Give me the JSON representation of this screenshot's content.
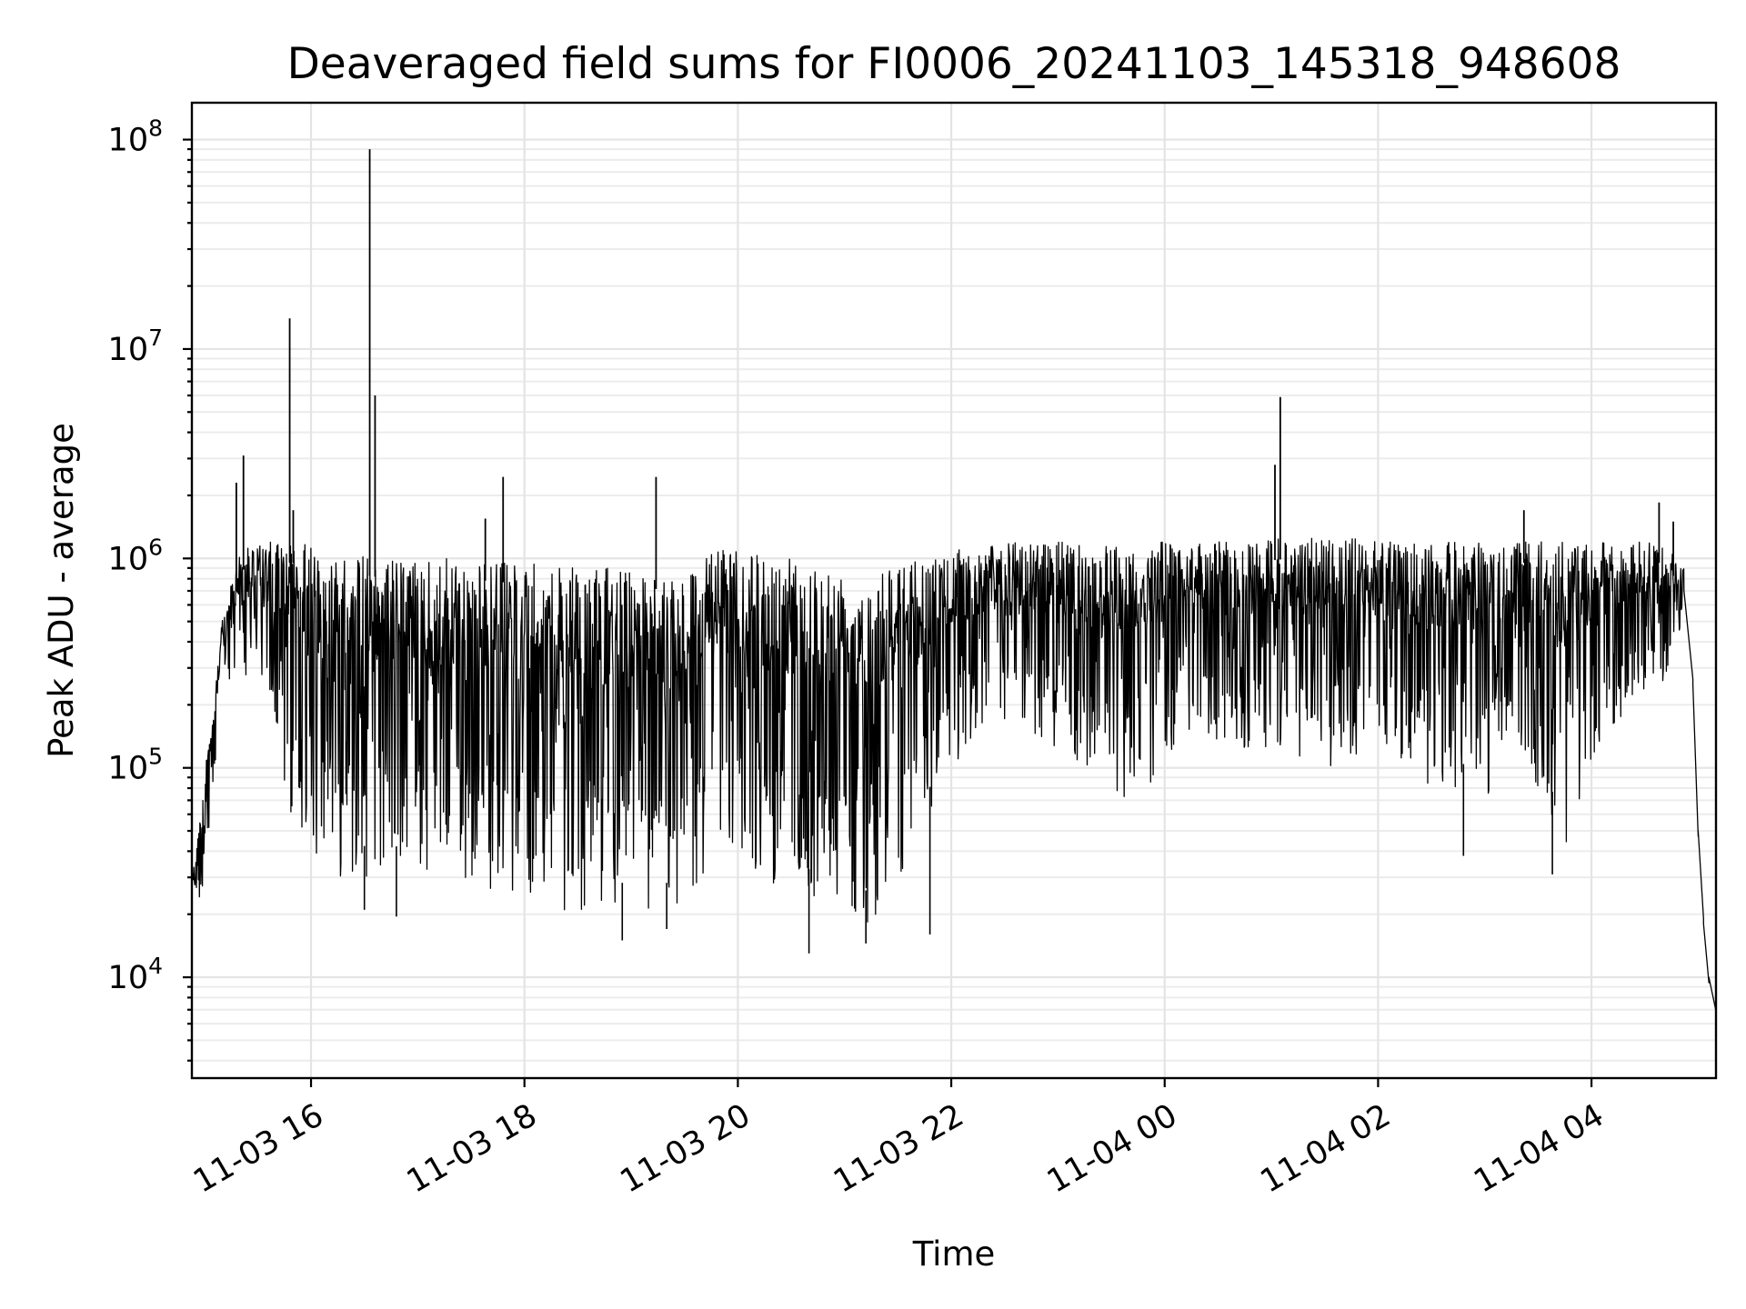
{
  "chart_data": {
    "type": "line",
    "title": "Deaveraged field sums for FI0006_20241103_145318_948608",
    "xlabel": "Time",
    "ylabel": "Peak ADU - average",
    "yscale": "log",
    "ylim": [
      3300,
      150000000
    ],
    "xlim": [
      "2024-11-03 14:53",
      "2024-11-04 05:10"
    ],
    "grid": true,
    "line_color": "#000000",
    "x_ticks": [
      {
        "t": "2024-11-03 16:00",
        "label": "11-03 16"
      },
      {
        "t": "2024-11-03 18:00",
        "label": "11-03 18"
      },
      {
        "t": "2024-11-03 20:00",
        "label": "11-03 20"
      },
      {
        "t": "2024-11-03 22:00",
        "label": "11-03 22"
      },
      {
        "t": "2024-11-04 00:00",
        "label": "11-04 00"
      },
      {
        "t": "2024-11-04 02:00",
        "label": "11-04 02"
      },
      {
        "t": "2024-11-04 04:00",
        "label": "11-04 04"
      }
    ],
    "y_ticks": [
      {
        "value": 10000,
        "base": "10",
        "exp": "4"
      },
      {
        "value": 100000,
        "base": "10",
        "exp": "5"
      },
      {
        "value": 1000000,
        "base": "10",
        "exp": "6"
      },
      {
        "value": 10000000,
        "base": "10",
        "exp": "7"
      },
      {
        "value": 100000000,
        "base": "10",
        "exp": "8"
      }
    ],
    "series": [
      {
        "envelope": [
          {
            "t": "2024-11-03 14:53",
            "lo": 20000,
            "hi": 30000
          },
          {
            "t": "2024-11-03 15:00",
            "lo": 25000,
            "hi": 90000
          },
          {
            "t": "2024-11-03 15:10",
            "lo": 200000,
            "hi": 500000
          },
          {
            "t": "2024-11-03 15:20",
            "lo": 300000,
            "hi": 1100000
          },
          {
            "t": "2024-11-03 15:35",
            "lo": 200000,
            "hi": 1200000
          },
          {
            "t": "2024-11-03 15:50",
            "lo": 50000,
            "hi": 1200000
          },
          {
            "t": "2024-11-03 16:15",
            "lo": 30000,
            "hi": 1100000
          },
          {
            "t": "2024-11-03 16:45",
            "lo": 30000,
            "hi": 1000000
          },
          {
            "t": "2024-11-03 17:30",
            "lo": 28000,
            "hi": 1000000
          },
          {
            "t": "2024-11-03 18:30",
            "lo": 20000,
            "hi": 900000
          },
          {
            "t": "2024-11-03 19:30",
            "lo": 20000,
            "hi": 900000
          },
          {
            "t": "2024-11-03 19:50",
            "lo": 40000,
            "hi": 1100000
          },
          {
            "t": "2024-11-03 20:30",
            "lo": 25000,
            "hi": 1000000
          },
          {
            "t": "2024-11-03 21:15",
            "lo": 18000,
            "hi": 900000
          },
          {
            "t": "2024-11-03 21:45",
            "lo": 50000,
            "hi": 1000000
          },
          {
            "t": "2024-11-03 22:00",
            "lo": 100000,
            "hi": 1100000
          },
          {
            "t": "2024-11-03 22:30",
            "lo": 150000,
            "hi": 1200000
          },
          {
            "t": "2024-11-03 23:00",
            "lo": 120000,
            "hi": 1200000
          },
          {
            "t": "2024-11-03 23:30",
            "lo": 80000,
            "hi": 1200000
          },
          {
            "t": "2024-11-03 23:45",
            "lo": 60000,
            "hi": 1200000
          },
          {
            "t": "2024-11-04 00:10",
            "lo": 150000,
            "hi": 1200000
          },
          {
            "t": "2024-11-04 00:45",
            "lo": 120000,
            "hi": 1200000
          },
          {
            "t": "2024-11-04 01:30",
            "lo": 100000,
            "hi": 1300000
          },
          {
            "t": "2024-11-04 02:00",
            "lo": 120000,
            "hi": 1200000
          },
          {
            "t": "2024-11-04 02:30",
            "lo": 80000,
            "hi": 1200000
          },
          {
            "t": "2024-11-04 03:00",
            "lo": 70000,
            "hi": 1200000
          },
          {
            "t": "2024-11-04 03:20",
            "lo": 120000,
            "hi": 1200000
          },
          {
            "t": "2024-11-04 03:45",
            "lo": 40000,
            "hi": 1200000
          },
          {
            "t": "2024-11-04 04:10",
            "lo": 150000,
            "hi": 1200000
          },
          {
            "t": "2024-11-04 04:40",
            "lo": 250000,
            "hi": 1200000
          },
          {
            "t": "2024-11-04 04:52",
            "lo": 500000,
            "hi": 900000
          }
        ],
        "tail": [
          {
            "t": "2024-11-04 04:52",
            "y": 700000
          },
          {
            "t": "2024-11-04 04:57",
            "y": 250000
          },
          {
            "t": "2024-11-04 05:00",
            "y": 50000
          },
          {
            "t": "2024-11-04 05:03",
            "y": 18000
          },
          {
            "t": "2024-11-04 05:06",
            "y": 10000
          },
          {
            "t": "2024-11-04 05:10",
            "y": 6500
          }
        ],
        "spikes": [
          {
            "t": "2024-11-03 15:18",
            "y": 2300000
          },
          {
            "t": "2024-11-03 15:22",
            "y": 3100000
          },
          {
            "t": "2024-11-03 15:48",
            "y": 14000000
          },
          {
            "t": "2024-11-03 15:50",
            "y": 1700000
          },
          {
            "t": "2024-11-03 16:33",
            "y": 90000000
          },
          {
            "t": "2024-11-03 16:36",
            "y": 6000000
          },
          {
            "t": "2024-11-03 17:38",
            "y": 1550000
          },
          {
            "t": "2024-11-03 17:48",
            "y": 2450000
          },
          {
            "t": "2024-11-03 19:14",
            "y": 2450000
          },
          {
            "t": "2024-11-04 01:02",
            "y": 2800000
          },
          {
            "t": "2024-11-04 01:05",
            "y": 5900000
          },
          {
            "t": "2024-11-04 03:22",
            "y": 1700000
          },
          {
            "t": "2024-11-04 04:38",
            "y": 1850000
          },
          {
            "t": "2024-11-04 04:46",
            "y": 1500000
          }
        ],
        "dips": [
          {
            "t": "2024-11-03 16:30",
            "y": 21000
          },
          {
            "t": "2024-11-03 16:48",
            "y": 19500
          },
          {
            "t": "2024-11-03 18:55",
            "y": 15000
          },
          {
            "t": "2024-11-03 19:20",
            "y": 17000
          },
          {
            "t": "2024-11-03 20:40",
            "y": 13000
          },
          {
            "t": "2024-11-03 21:12",
            "y": 14500
          },
          {
            "t": "2024-11-03 21:48",
            "y": 16000
          },
          {
            "t": "2024-11-04 02:48",
            "y": 38000
          },
          {
            "t": "2024-11-04 03:38",
            "y": 31000
          }
        ]
      }
    ]
  }
}
